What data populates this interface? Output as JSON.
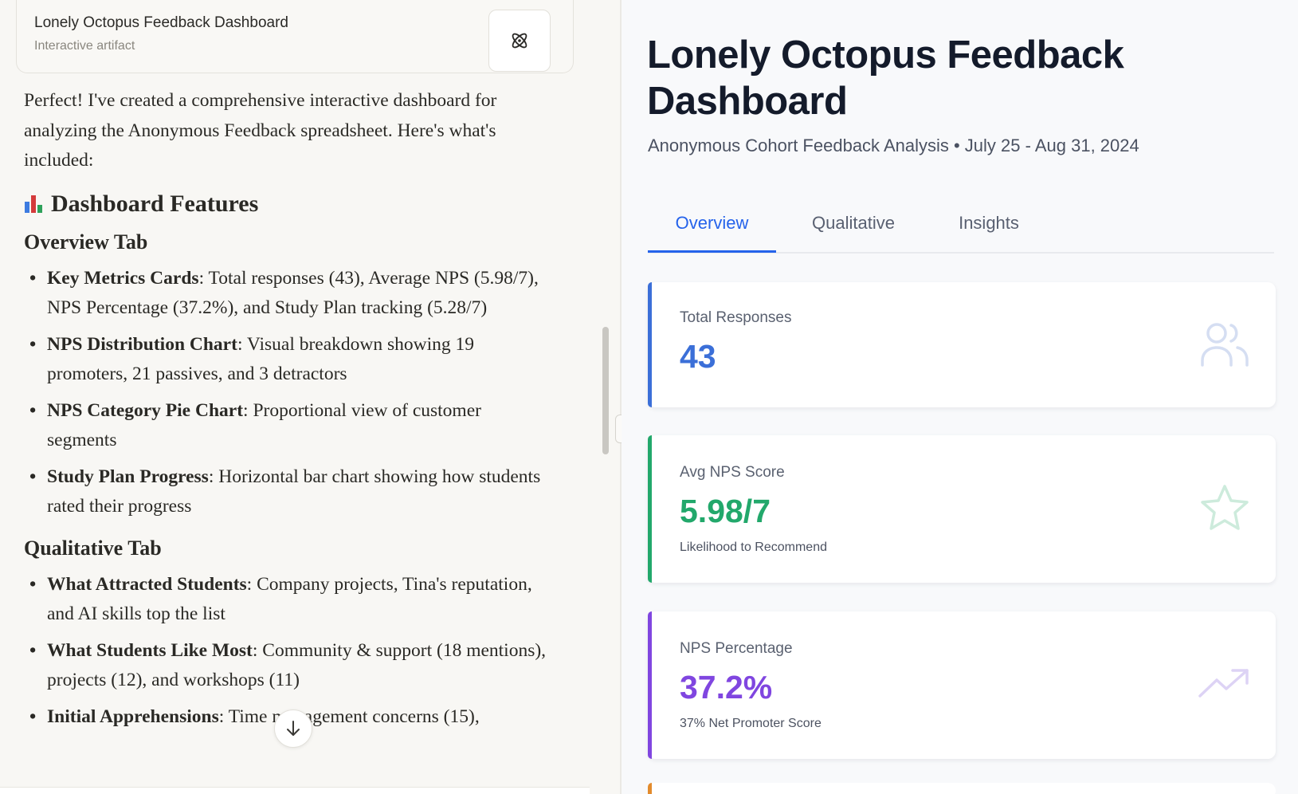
{
  "artifact": {
    "title": "Lonely Octopus Feedback Dashboard",
    "subtitle": "Interactive artifact",
    "icon": "atom-icon"
  },
  "message": {
    "intro": "Perfect! I've created a comprehensive interactive dashboard for analyzing the Anonymous Feedback spreadsheet. Here's what's included:",
    "heading": "Dashboard Features",
    "heading_icon": "bar-chart-emoji-icon",
    "sections": [
      {
        "title": "Overview Tab",
        "items": [
          {
            "bold": "Key Metrics Cards",
            "text": ": Total responses (43), Average NPS (5.98/7), NPS Percentage (37.2%), and Study Plan tracking (5.28/7)"
          },
          {
            "bold": "NPS Distribution Chart",
            "text": ": Visual breakdown showing 19 promoters, 21 passives, and 3 detractors"
          },
          {
            "bold": "NPS Category Pie Chart",
            "text": ": Proportional view of customer segments"
          },
          {
            "bold": "Study Plan Progress",
            "text": ": Horizontal bar chart showing how students rated their progress"
          }
        ]
      },
      {
        "title": "Qualitative Tab",
        "items": [
          {
            "bold": "What Attracted Students",
            "text": ": Company projects, Tina's reputation, and AI skills top the list"
          },
          {
            "bold": "What Students Like Most",
            "text": ": Community & support (18 mentions), projects (12), and workshops (11)"
          },
          {
            "bold": "Initial Apprehensions",
            "text": ": Time management concerns (15),"
          }
        ]
      }
    ]
  },
  "dashboard": {
    "title": "Lonely Octopus Feedback Dashboard",
    "subtitle": "Anonymous Cohort Feedback Analysis • July 25 - Aug 31, 2024",
    "tabs": [
      "Overview",
      "Qualitative",
      "Insights"
    ],
    "active_tab": "Overview",
    "cards": [
      {
        "label": "Total Responses",
        "value": "43",
        "note": "",
        "color": "#3b6fd8",
        "icon": "users-icon"
      },
      {
        "label": "Avg NPS Score",
        "value": "5.98/7",
        "note": "Likelihood to Recommend",
        "color": "#22a86b",
        "icon": "star-icon"
      },
      {
        "label": "NPS Percentage",
        "value": "37.2%",
        "note": "37% Net Promoter Score",
        "color": "#8046e0",
        "icon": "trending-up-icon"
      }
    ],
    "next_card_color": "#e38b2c"
  },
  "colors": {
    "accent": "#2563eb",
    "title": "#141b2b"
  }
}
